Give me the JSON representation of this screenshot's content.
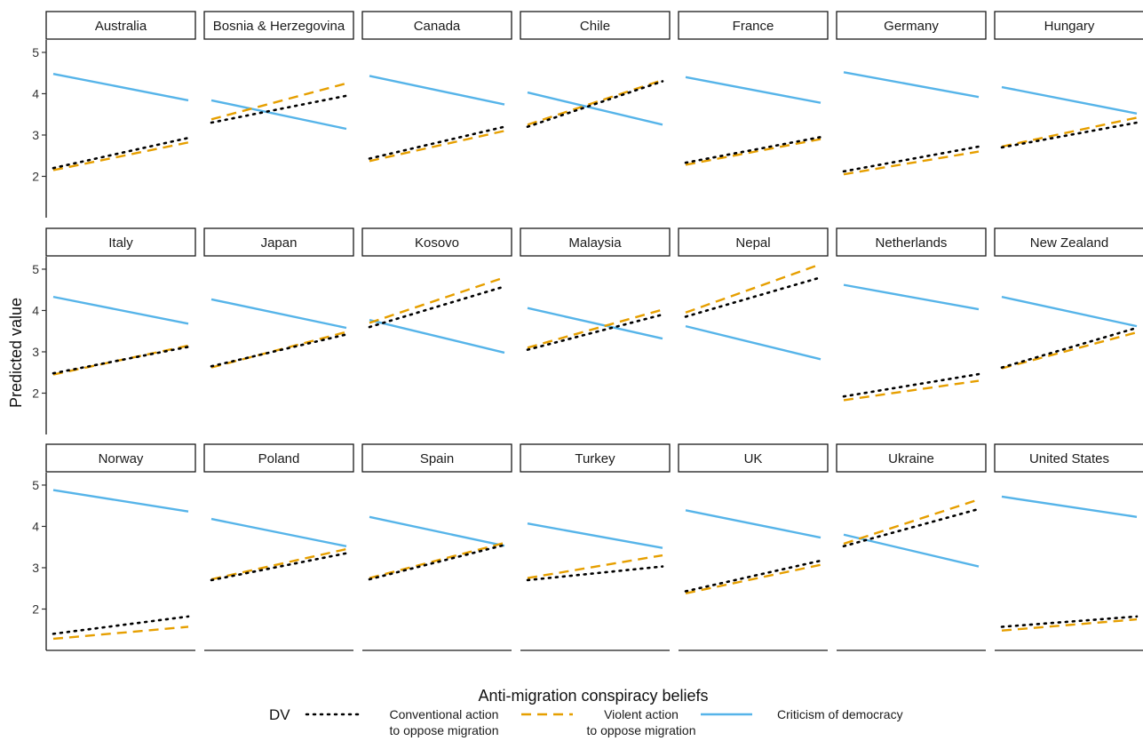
{
  "chart_data": {
    "type": "line",
    "facet_layout": "7 columns x 3 rows",
    "xlabel": "Anti-migration conspiracy beliefs",
    "ylabel": "Predicted value",
    "ylim": [
      1,
      5.3
    ],
    "yticks": [
      "2",
      "3",
      "4",
      "5"
    ],
    "xlim": [
      0,
      1
    ],
    "grid": false,
    "legend": {
      "position": "bottom",
      "title": "DV",
      "entries": [
        {
          "key": "conventional",
          "label_line1": "Conventional action",
          "label_line2": "to oppose migration",
          "color": "#000000",
          "style": "dotted"
        },
        {
          "key": "violent",
          "label_line1": "Violent action",
          "label_line2": "to oppose migration",
          "color": "#E69F00",
          "style": "dashed"
        },
        {
          "key": "criticism",
          "label_line1": "Criticism of democracy",
          "label_line2": "",
          "color": "#56B4E9",
          "style": "solid"
        }
      ]
    },
    "panels": [
      {
        "name": "Australia",
        "conventional": [
          2.2,
          2.93
        ],
        "violent": [
          2.15,
          2.82
        ],
        "criticism": [
          4.48,
          3.84
        ]
      },
      {
        "name": "Bosnia & Herzegovina",
        "conventional": [
          3.3,
          3.95
        ],
        "violent": [
          3.38,
          4.25
        ],
        "criticism": [
          3.84,
          3.15
        ]
      },
      {
        "name": "Canada",
        "conventional": [
          2.43,
          3.2
        ],
        "violent": [
          2.37,
          3.1
        ],
        "criticism": [
          4.43,
          3.74
        ]
      },
      {
        "name": "Chile",
        "conventional": [
          3.2,
          4.3
        ],
        "violent": [
          3.25,
          4.33
        ],
        "criticism": [
          4.03,
          3.25
        ]
      },
      {
        "name": "France",
        "conventional": [
          2.33,
          2.95
        ],
        "violent": [
          2.28,
          2.9
        ],
        "criticism": [
          4.4,
          3.78
        ]
      },
      {
        "name": "Germany",
        "conventional": [
          2.12,
          2.72
        ],
        "violent": [
          2.05,
          2.6
        ],
        "criticism": [
          4.52,
          3.92
        ]
      },
      {
        "name": "Hungary",
        "conventional": [
          2.7,
          3.3
        ],
        "violent": [
          2.72,
          3.42
        ],
        "criticism": [
          4.16,
          3.52
        ]
      },
      {
        "name": "Italy",
        "conventional": [
          2.48,
          3.12
        ],
        "violent": [
          2.45,
          3.15
        ],
        "criticism": [
          4.33,
          3.68
        ]
      },
      {
        "name": "Japan",
        "conventional": [
          2.65,
          3.42
        ],
        "violent": [
          2.62,
          3.48
        ],
        "criticism": [
          4.27,
          3.58
        ]
      },
      {
        "name": "Kosovo",
        "conventional": [
          3.6,
          4.58
        ],
        "violent": [
          3.7,
          4.8
        ],
        "criticism": [
          3.77,
          2.98
        ]
      },
      {
        "name": "Malaysia",
        "conventional": [
          3.05,
          3.9
        ],
        "violent": [
          3.1,
          4.02
        ],
        "criticism": [
          4.06,
          3.32
        ]
      },
      {
        "name": "Nepal",
        "conventional": [
          3.85,
          4.8
        ],
        "violent": [
          3.95,
          5.12
        ],
        "criticism": [
          3.62,
          2.82
        ]
      },
      {
        "name": "Netherlands",
        "conventional": [
          1.92,
          2.46
        ],
        "violent": [
          1.83,
          2.3
        ],
        "criticism": [
          4.62,
          4.03
        ]
      },
      {
        "name": "New Zealand",
        "conventional": [
          2.62,
          3.58
        ],
        "violent": [
          2.6,
          3.47
        ],
        "criticism": [
          4.33,
          3.62
        ]
      },
      {
        "name": "Norway",
        "conventional": [
          1.4,
          1.82
        ],
        "violent": [
          1.28,
          1.57
        ],
        "criticism": [
          4.88,
          4.36
        ]
      },
      {
        "name": "Poland",
        "conventional": [
          2.7,
          3.35
        ],
        "violent": [
          2.72,
          3.45
        ],
        "criticism": [
          4.18,
          3.52
        ]
      },
      {
        "name": "Spain",
        "conventional": [
          2.72,
          3.55
        ],
        "violent": [
          2.75,
          3.6
        ],
        "criticism": [
          4.23,
          3.53
        ]
      },
      {
        "name": "Turkey",
        "conventional": [
          2.7,
          3.03
        ],
        "violent": [
          2.75,
          3.3
        ],
        "criticism": [
          4.07,
          3.48
        ]
      },
      {
        "name": "UK",
        "conventional": [
          2.43,
          3.17
        ],
        "violent": [
          2.38,
          3.07
        ],
        "criticism": [
          4.39,
          3.73
        ]
      },
      {
        "name": "Ukraine",
        "conventional": [
          3.52,
          4.42
        ],
        "violent": [
          3.58,
          4.65
        ],
        "criticism": [
          3.8,
          3.03
        ]
      },
      {
        "name": "United States",
        "conventional": [
          1.57,
          1.82
        ],
        "violent": [
          1.48,
          1.75
        ],
        "criticism": [
          4.72,
          4.23
        ]
      }
    ]
  }
}
